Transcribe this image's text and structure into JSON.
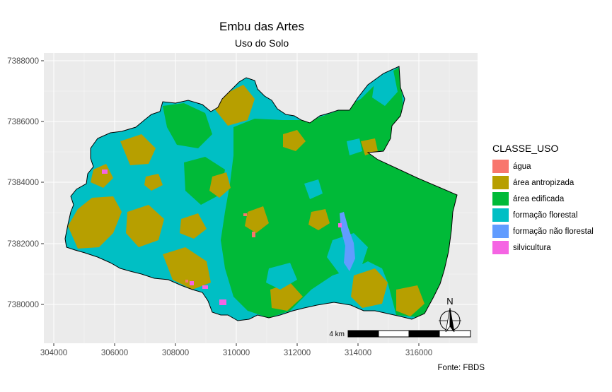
{
  "map": {
    "title": "Embu das Artes",
    "subtitle": "Uso do Solo",
    "caption": "Fonte: FBDS",
    "y_ticks": [
      "7388000",
      "7386000",
      "7384000",
      "7382000",
      "7380000"
    ],
    "x_ticks": [
      "304000",
      "306000",
      "308000",
      "310000",
      "312000",
      "314000",
      "316000"
    ],
    "scale_bar_label": "4 km",
    "north_label": "N",
    "panel_background": "#ebebeb",
    "grid_color": "#ffffff"
  },
  "legend": {
    "title": "CLASSE_USO",
    "items": [
      {
        "label": "água",
        "color": "#F8766D"
      },
      {
        "label": "área antropizada",
        "color": "#B79F00"
      },
      {
        "label": "área edificada",
        "color": "#00BA38"
      },
      {
        "label": "formação florestal",
        "color": "#00BFC4"
      },
      {
        "label": "formação não florestal",
        "color": "#619CFF"
      },
      {
        "label": "silvicultura",
        "color": "#F564E3"
      }
    ]
  }
}
